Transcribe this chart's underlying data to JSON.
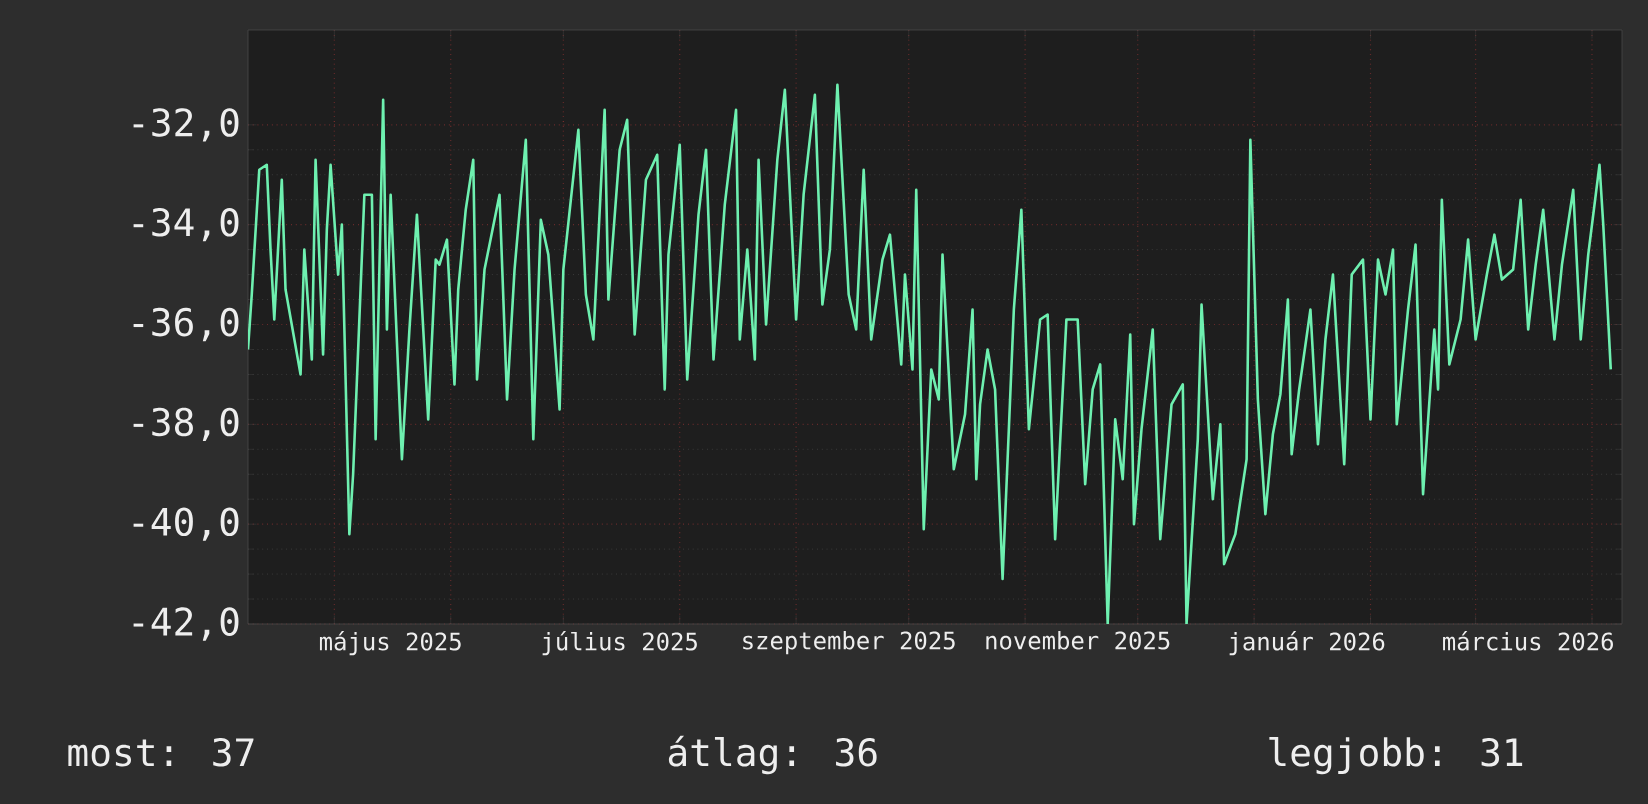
{
  "chart_data": {
    "type": "line",
    "color": "#6ef0b0",
    "grid": true,
    "xlim": [
      "2025-04-08",
      "2026-04-09"
    ],
    "ylim": [
      -42,
      -30.1
    ],
    "xticks": [
      {
        "value": "2025-05-01",
        "label": null
      },
      {
        "value": "2025-06-01",
        "label": null
      },
      {
        "value": "2025-07-01",
        "label": null
      },
      {
        "value": "2025-08-01",
        "label": null
      },
      {
        "value": "2025-09-01",
        "label": null
      },
      {
        "value": "2025-10-01",
        "label": null
      },
      {
        "value": "2025-11-01",
        "label": null
      },
      {
        "value": "2025-12-01",
        "label": null
      },
      {
        "value": "2026-01-01",
        "label": null
      },
      {
        "value": "2026-02-01",
        "label": null
      },
      {
        "value": "2026-03-01",
        "label": null
      },
      {
        "value": "2026-04-01",
        "label": null
      },
      {
        "value": "2025-05-16",
        "label": "május 2025"
      },
      {
        "value": "2025-07-16",
        "label": "július 2025"
      },
      {
        "value": "2025-09-15",
        "label": "szeptember 2025"
      },
      {
        "value": "2025-11-15",
        "label": "november 2025"
      },
      {
        "value": "2026-01-15",
        "label": "január 2026"
      },
      {
        "value": "2026-03-15",
        "label": "március 2026"
      }
    ],
    "yticks": [
      {
        "value": -42,
        "label": "-42,0"
      },
      {
        "value": -40,
        "label": "-40,0"
      },
      {
        "value": -38,
        "label": "-38,0"
      },
      {
        "value": -36,
        "label": "-36,0"
      },
      {
        "value": -34,
        "label": "-34,0"
      },
      {
        "value": -32,
        "label": "-32,0"
      }
    ],
    "annotations": [
      "most: 37",
      "átlag: 36",
      "legjobb: 31"
    ],
    "x": [
      "2025-04-08",
      "2025-04-09",
      "2025-04-11",
      "2025-04-13",
      "2025-04-14",
      "2025-04-15",
      "2025-04-17",
      "2025-04-18",
      "2025-04-22",
      "2025-04-23",
      "2025-04-25",
      "2025-04-26",
      "2025-04-28",
      "2025-04-29",
      "2025-04-30",
      "2025-05-02",
      "2025-05-03",
      "2025-05-05",
      "2025-05-06",
      "2025-05-09",
      "2025-05-11",
      "2025-05-12",
      "2025-05-14",
      "2025-05-15",
      "2025-05-16",
      "2025-05-19",
      "2025-05-21",
      "2025-05-23",
      "2025-05-26",
      "2025-05-28",
      "2025-05-29",
      "2025-05-31",
      "2025-06-02",
      "2025-06-03",
      "2025-06-05",
      "2025-06-07",
      "2025-06-08",
      "2025-06-10",
      "2025-06-14",
      "2025-06-16",
      "2025-06-18",
      "2025-06-21",
      "2025-06-23",
      "2025-06-25",
      "2025-06-27",
      "2025-06-30",
      "2025-07-01",
      "2025-07-05",
      "2025-07-07",
      "2025-07-09",
      "2025-07-12",
      "2025-07-13",
      "2025-07-16",
      "2025-07-18",
      "2025-07-20",
      "2025-07-23",
      "2025-07-26",
      "2025-07-28",
      "2025-07-29",
      "2025-08-01",
      "2025-08-03",
      "2025-08-06",
      "2025-08-08",
      "2025-08-10",
      "2025-08-13",
      "2025-08-16",
      "2025-08-17",
      "2025-08-19",
      "2025-08-21",
      "2025-08-22",
      "2025-08-24",
      "2025-08-27",
      "2025-08-29",
      "2025-09-01",
      "2025-09-03",
      "2025-09-06",
      "2025-09-08",
      "2025-09-10",
      "2025-09-12",
      "2025-09-15",
      "2025-09-17",
      "2025-09-19",
      "2025-09-21",
      "2025-09-24",
      "2025-09-26",
      "2025-09-29",
      "2025-09-30",
      "2025-10-02",
      "2025-10-03",
      "2025-10-05",
      "2025-10-07",
      "2025-10-09",
      "2025-10-10",
      "2025-10-13",
      "2025-10-16",
      "2025-10-18",
      "2025-10-19",
      "2025-10-20",
      "2025-10-22",
      "2025-10-24",
      "2025-10-26",
      "2025-10-29",
      "2025-10-31",
      "2025-11-02",
      "2025-11-05",
      "2025-11-07",
      "2025-11-09",
      "2025-11-12",
      "2025-11-15",
      "2025-11-17",
      "2025-11-19",
      "2025-11-21",
      "2025-11-23",
      "2025-11-25",
      "2025-11-27",
      "2025-11-29",
      "2025-11-30",
      "2025-12-02",
      "2025-12-05",
      "2025-12-07",
      "2025-12-10",
      "2025-12-13",
      "2025-12-14",
      "2025-12-17",
      "2025-12-18",
      "2025-12-21",
      "2025-12-23",
      "2025-12-24",
      "2025-12-27",
      "2025-12-30",
      "2025-12-31",
      "2026-01-02",
      "2026-01-04",
      "2026-01-06",
      "2026-01-08",
      "2026-01-10",
      "2026-01-11",
      "2026-01-13",
      "2026-01-16",
      "2026-01-18",
      "2026-01-20",
      "2026-01-22",
      "2026-01-25",
      "2026-01-27",
      "2026-01-30",
      "2026-02-01",
      "2026-02-03",
      "2026-02-05",
      "2026-02-07",
      "2026-02-08",
      "2026-02-11",
      "2026-02-13",
      "2026-02-15",
      "2026-02-18",
      "2026-02-19",
      "2026-02-20",
      "2026-02-22",
      "2026-02-25",
      "2026-02-27",
      "2026-03-01",
      "2026-03-04",
      "2026-03-06",
      "2026-03-08",
      "2026-03-11",
      "2026-03-13",
      "2026-03-15",
      "2026-03-17",
      "2026-03-19",
      "2026-03-22",
      "2026-03-24",
      "2026-03-27",
      "2026-03-29",
      "2026-03-31",
      "2026-04-03",
      "2026-04-04",
      "2026-04-06"
    ],
    "values": [
      -36.5,
      -35.4,
      -32.9,
      -32.8,
      -34.5,
      -35.9,
      -33.1,
      -35.3,
      -37.0,
      -34.5,
      -36.7,
      -32.7,
      -36.6,
      -34.1,
      -32.8,
      -35.0,
      -34.0,
      -40.2,
      -39.0,
      -33.4,
      -33.4,
      -38.3,
      -31.5,
      -36.1,
      -33.4,
      -38.7,
      -36.1,
      -33.8,
      -37.9,
      -34.7,
      -34.8,
      -34.3,
      -37.2,
      -35.3,
      -33.7,
      -32.7,
      -37.1,
      -34.9,
      -33.4,
      -37.5,
      -34.9,
      -32.3,
      -38.3,
      -33.9,
      -34.6,
      -37.7,
      -34.9,
      -32.1,
      -35.4,
      -36.3,
      -31.7,
      -35.5,
      -32.5,
      -31.9,
      -36.2,
      -33.1,
      -32.6,
      -37.3,
      -34.6,
      -32.4,
      -37.1,
      -33.8,
      -32.5,
      -36.7,
      -33.6,
      -31.7,
      -36.3,
      -34.5,
      -36.7,
      -32.7,
      -36.0,
      -32.7,
      -31.3,
      -35.9,
      -33.4,
      -31.4,
      -35.6,
      -34.5,
      -31.2,
      -35.4,
      -36.1,
      -32.9,
      -36.3,
      -34.7,
      -34.2,
      -36.8,
      -35.0,
      -36.9,
      -33.3,
      -40.1,
      -36.9,
      -37.5,
      -34.6,
      -38.9,
      -37.8,
      -35.7,
      -39.1,
      -37.6,
      -36.5,
      -37.3,
      -41.1,
      -35.7,
      -33.7,
      -38.1,
      -35.9,
      -35.8,
      -40.3,
      -35.9,
      -35.9,
      -39.2,
      -37.3,
      -36.8,
      -42.0,
      -37.9,
      -39.1,
      -36.2,
      -40.0,
      -38.1,
      -36.1,
      -40.3,
      -37.6,
      -37.2,
      -42.0,
      -38.3,
      -35.6,
      -39.5,
      -38.0,
      -40.8,
      -40.2,
      -38.7,
      -32.3,
      -37.5,
      -39.8,
      -38.2,
      -37.4,
      -35.5,
      -38.6,
      -37.3,
      -35.7,
      -38.4,
      -36.3,
      -35.0,
      -38.8,
      -35.0,
      -34.7,
      -37.9,
      -34.7,
      -35.4,
      -34.5,
      -38.0,
      -35.7,
      -34.4,
      -39.4,
      -36.1,
      -37.3,
      -33.5,
      -36.8,
      -35.9,
      -34.3,
      -36.3,
      -35.0,
      -34.2,
      -35.1,
      -34.9,
      -33.5,
      -36.1,
      -34.8,
      -33.7,
      -36.3,
      -34.8,
      -33.3,
      -36.3,
      -34.6,
      -32.8,
      -34.0,
      -36.9
    ]
  }
}
